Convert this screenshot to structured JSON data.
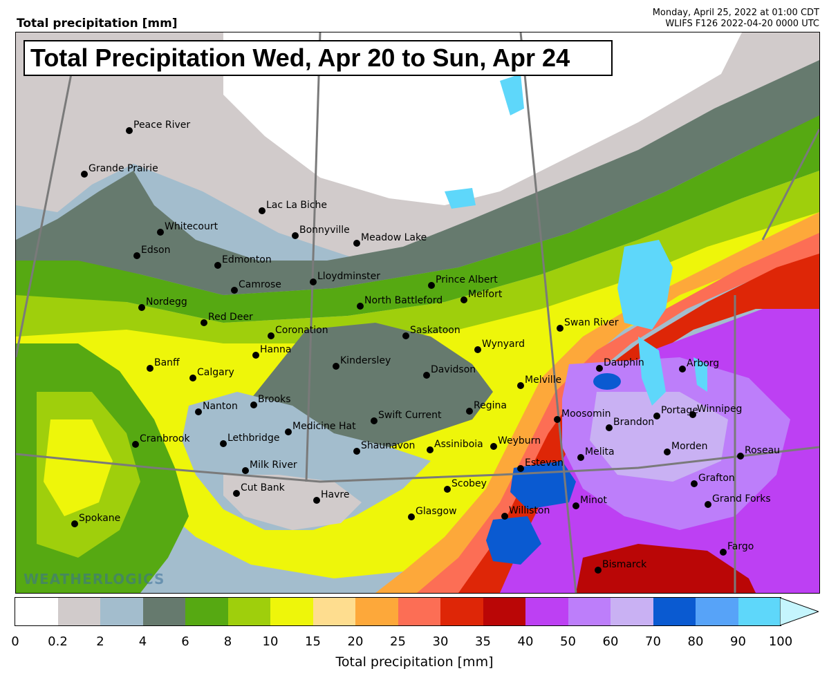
{
  "header": {
    "variable": "Total precipitation [mm]",
    "valid_time": "Monday, April 25, 2022 at 01:00 CDT",
    "model_run": "WLIFS F126 2022-04-20 0000 UTC"
  },
  "map": {
    "title": "Total Precipitation Wed, Apr 20 to Sun, Apr 24",
    "watermark": "WEATHERLOGICS",
    "cities": [
      {
        "name": "Peace River"
      },
      {
        "name": "Grande Prairie"
      },
      {
        "name": "Lac La Biche"
      },
      {
        "name": "Whitecourt"
      },
      {
        "name": "Bonnyville"
      },
      {
        "name": "Meadow Lake"
      },
      {
        "name": "Edson"
      },
      {
        "name": "Edmonton"
      },
      {
        "name": "Lloydminster"
      },
      {
        "name": "Camrose"
      },
      {
        "name": "Prince Albert"
      },
      {
        "name": "Nordegg"
      },
      {
        "name": "North Battleford"
      },
      {
        "name": "Melfort"
      },
      {
        "name": "Red Deer"
      },
      {
        "name": "Coronation"
      },
      {
        "name": "Saskatoon"
      },
      {
        "name": "Swan River"
      },
      {
        "name": "Hanna"
      },
      {
        "name": "Wynyard"
      },
      {
        "name": "Banff"
      },
      {
        "name": "Kindersley"
      },
      {
        "name": "Dauphin"
      },
      {
        "name": "Arborg"
      },
      {
        "name": "Calgary"
      },
      {
        "name": "Davidson"
      },
      {
        "name": "Melville"
      },
      {
        "name": "Brooks"
      },
      {
        "name": "Nanton"
      },
      {
        "name": "Regina"
      },
      {
        "name": "Moosomin"
      },
      {
        "name": "Winnipeg"
      },
      {
        "name": "Portage"
      },
      {
        "name": "Swift Current"
      },
      {
        "name": "Brandon"
      },
      {
        "name": "Medicine Hat"
      },
      {
        "name": "Cranbrook"
      },
      {
        "name": "Lethbridge"
      },
      {
        "name": "Weyburn"
      },
      {
        "name": "Shaunavon"
      },
      {
        "name": "Assiniboia"
      },
      {
        "name": "Morden"
      },
      {
        "name": "Melita"
      },
      {
        "name": "Roseau"
      },
      {
        "name": "Estevan"
      },
      {
        "name": "Milk River"
      },
      {
        "name": "Scobey"
      },
      {
        "name": "Cut Bank"
      },
      {
        "name": "Grafton"
      },
      {
        "name": "Havre"
      },
      {
        "name": "Minot"
      },
      {
        "name": "Grand Forks"
      },
      {
        "name": "Williston"
      },
      {
        "name": "Glasgow"
      },
      {
        "name": "Spokane"
      },
      {
        "name": "Fargo"
      },
      {
        "name": "Bismarck"
      }
    ]
  },
  "legend": {
    "label": "Total precipitation [mm]",
    "ticks": [
      "0",
      "0.2",
      "2",
      "4",
      "6",
      "8",
      "10",
      "15",
      "20",
      "25",
      "30",
      "35",
      "40",
      "50",
      "60",
      "70",
      "80",
      "90",
      "100"
    ],
    "colors": [
      "#ffffff",
      "#d1cbcb",
      "#a3bdcd",
      "#667a6e",
      "#56a912",
      "#9fcf0c",
      "#eef60a",
      "#fedd8f",
      "#fda83a",
      "#fc6e55",
      "#de2607",
      "#ba0606",
      "#bd40f3",
      "#bd7efa",
      "#c9b1f3",
      "#0a5ad1",
      "#57a3f8",
      "#5ed7fa"
    ],
    "overflow_color": "#c5f5fd"
  }
}
